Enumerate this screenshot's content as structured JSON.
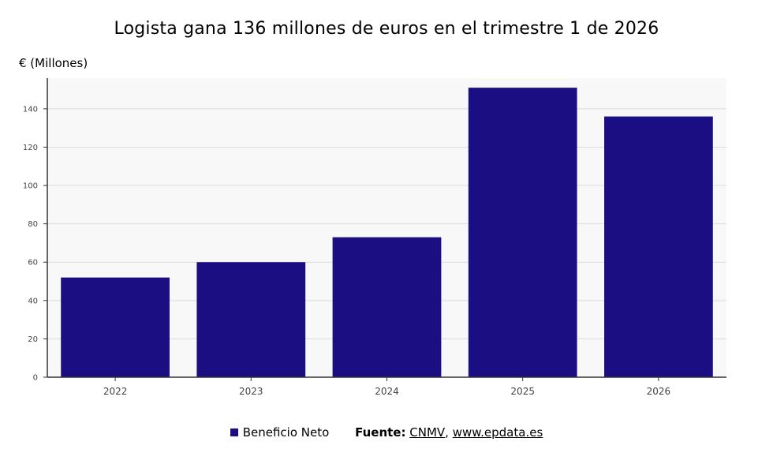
{
  "title": "Logista gana 136 millones de euros en el trimestre 1 de 2026",
  "unit_label": "€ (Millones)",
  "colors": {
    "bar": "#1b0e82",
    "plot_bg": "#f8f8f8",
    "grid": "#dcdcdc",
    "axis": "#333333",
    "tick_text": "#444444"
  },
  "chart_data": {
    "type": "bar",
    "categories": [
      "2022",
      "2023",
      "2024",
      "2025",
      "2026"
    ],
    "series": [
      {
        "name": "Beneficio Neto",
        "values": [
          52,
          60,
          73,
          151,
          136
        ]
      }
    ],
    "ylim": [
      0,
      156
    ],
    "yticks": [
      0,
      20,
      40,
      60,
      80,
      100,
      120,
      140
    ],
    "xlabel": "",
    "ylabel": "€ (Millones)",
    "grid": true,
    "legend": "bottom-center"
  },
  "footer": {
    "legend_label": "Beneficio Neto",
    "source_label": "Fuente:",
    "source_cnmv": "CNMV",
    "source_separator": ",",
    "source_site": "www.epdata.es"
  }
}
